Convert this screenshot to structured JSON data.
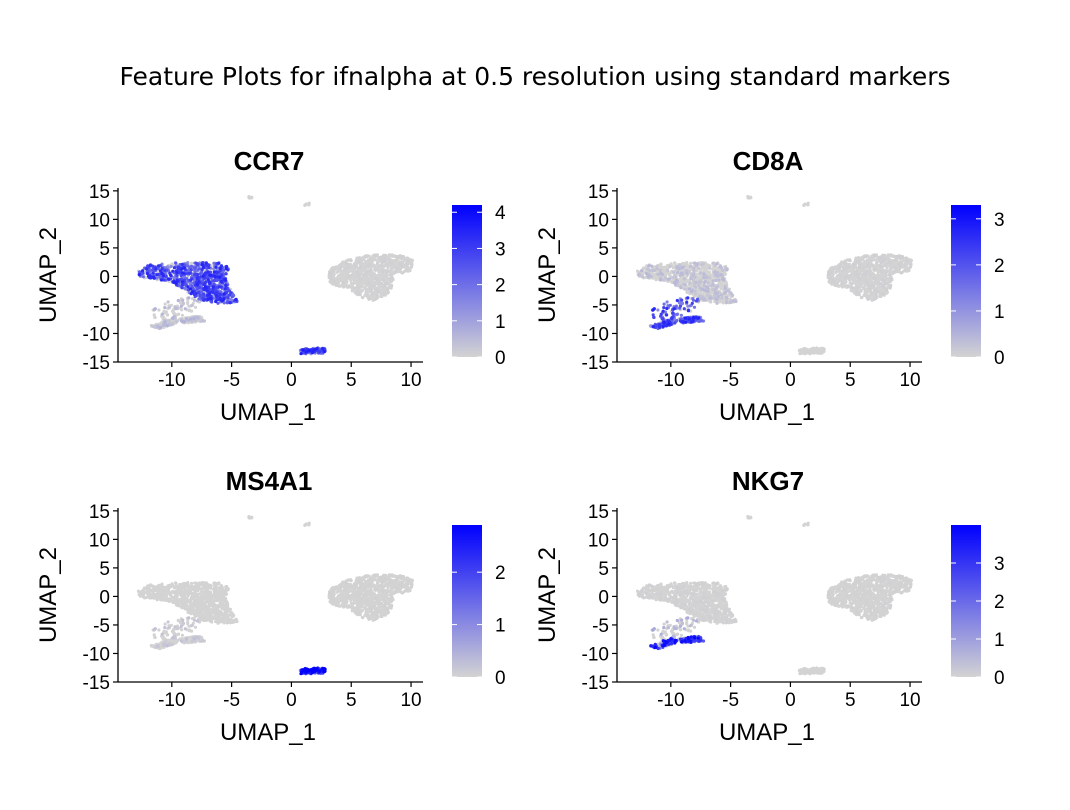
{
  "figure_title": "Feature Plots for ifnalpha at 0.5 resolution using standard markers",
  "colors": {
    "low": "#d3d3d3",
    "high": "#0000ff",
    "axis": "#000000"
  },
  "chart_data": [
    {
      "type": "scatter",
      "title": "CCR7",
      "xlabel": "UMAP_1",
      "ylabel": "UMAP_2",
      "xlim": [
        -14.5,
        11
      ],
      "ylim": [
        -15,
        15.5
      ],
      "xticks": [
        -10,
        -5,
        0,
        5,
        10
      ],
      "xtick_labels": [
        "-10",
        "-5",
        "0",
        "5",
        "10"
      ],
      "yticks": [
        -15,
        -10,
        -5,
        0,
        5,
        10,
        15
      ],
      "ytick_labels": [
        "-15",
        "-10",
        "-5",
        "0",
        "5",
        "10",
        "15"
      ],
      "legend": {
        "position": "right",
        "min": 0,
        "max": 4.2,
        "ticks": [
          0,
          1,
          2,
          3,
          4
        ],
        "tick_labels": [
          "0",
          "1",
          "2",
          "3",
          "4"
        ]
      },
      "expression_by_cluster": {
        "naive_t": 2.5,
        "cd8_t": 0.5,
        "nk": 0.3,
        "b": 2.6,
        "mono": 0.05,
        "top_tiny": 0
      }
    },
    {
      "type": "scatter",
      "title": "CD8A",
      "xlabel": "UMAP_1",
      "ylabel": "UMAP_2",
      "xlim": [
        -14.5,
        11
      ],
      "ylim": [
        -15,
        15.5
      ],
      "xticks": [
        -10,
        -5,
        0,
        5,
        10
      ],
      "xtick_labels": [
        "-10",
        "-5",
        "0",
        "5",
        "10"
      ],
      "yticks": [
        -15,
        -10,
        -5,
        0,
        5,
        10,
        15
      ],
      "ytick_labels": [
        "-15",
        "-10",
        "-5",
        "0",
        "5",
        "10",
        "15"
      ],
      "legend": {
        "position": "right",
        "min": 0,
        "max": 3.3,
        "ticks": [
          0,
          1,
          2,
          3
        ],
        "tick_labels": [
          "0",
          "1",
          "2",
          "3"
        ]
      },
      "expression_by_cluster": {
        "naive_t": 0.3,
        "cd8_t": 2.0,
        "nk": 1.6,
        "b": 0.0,
        "mono": 0.05,
        "top_tiny": 0
      }
    },
    {
      "type": "scatter",
      "title": "MS4A1",
      "xlabel": "UMAP_1",
      "ylabel": "UMAP_2",
      "xlim": [
        -14.5,
        11
      ],
      "ylim": [
        -15,
        15.5
      ],
      "xticks": [
        -10,
        -5,
        0,
        5,
        10
      ],
      "xtick_labels": [
        "-10",
        "-5",
        "0",
        "5",
        "10"
      ],
      "yticks": [
        -15,
        -10,
        -5,
        0,
        5,
        10,
        15
      ],
      "ytick_labels": [
        "-15",
        "-10",
        "-5",
        "0",
        "5",
        "10",
        "15"
      ],
      "legend": {
        "position": "right",
        "min": 0,
        "max": 2.9,
        "ticks": [
          0,
          1,
          2
        ],
        "tick_labels": [
          "0",
          "1",
          "2"
        ]
      },
      "expression_by_cluster": {
        "naive_t": 0.0,
        "cd8_t": 0.2,
        "nk": 0.0,
        "b": 2.4,
        "mono": 0.02,
        "top_tiny": 0
      }
    },
    {
      "type": "scatter",
      "title": "NKG7",
      "xlabel": "UMAP_1",
      "ylabel": "UMAP_2",
      "xlim": [
        -14.5,
        11
      ],
      "ylim": [
        -15,
        15.5
      ],
      "xticks": [
        -10,
        -5,
        0,
        5,
        10
      ],
      "xtick_labels": [
        "-10",
        "-5",
        "0",
        "5",
        "10"
      ],
      "yticks": [
        -15,
        -10,
        -5,
        0,
        5,
        10,
        15
      ],
      "ytick_labels": [
        "-15",
        "-10",
        "-5",
        "0",
        "5",
        "10",
        "15"
      ],
      "legend": {
        "position": "right",
        "min": 0,
        "max": 4.0,
        "ticks": [
          0,
          1,
          2,
          3
        ],
        "tick_labels": [
          "0",
          "1",
          "2",
          "3"
        ]
      },
      "expression_by_cluster": {
        "naive_t": 0.05,
        "cd8_t": 0.6,
        "nk": 2.8,
        "b": 0.0,
        "mono": 0.03,
        "top_tiny": 0
      }
    }
  ]
}
